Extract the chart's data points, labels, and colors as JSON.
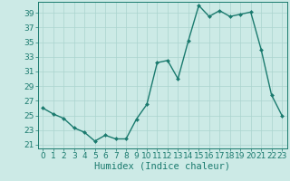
{
  "x": [
    0,
    1,
    2,
    3,
    4,
    5,
    6,
    7,
    8,
    9,
    10,
    11,
    12,
    13,
    14,
    15,
    16,
    17,
    18,
    19,
    20,
    21,
    22,
    23
  ],
  "y": [
    26.0,
    25.2,
    24.6,
    23.3,
    22.7,
    21.5,
    22.3,
    21.8,
    21.8,
    24.5,
    26.5,
    32.2,
    32.5,
    30.0,
    35.2,
    40.0,
    38.5,
    39.3,
    38.5,
    38.8,
    39.1,
    34.0,
    27.8,
    25.0
  ],
  "xlabel": "Humidex (Indice chaleur)",
  "ylabel": "",
  "xlim": [
    -0.5,
    23.5
  ],
  "ylim": [
    20.5,
    40.5
  ],
  "yticks": [
    21,
    23,
    25,
    27,
    29,
    31,
    33,
    35,
    37,
    39
  ],
  "xticks": [
    0,
    1,
    2,
    3,
    4,
    5,
    6,
    7,
    8,
    9,
    10,
    11,
    12,
    13,
    14,
    15,
    16,
    17,
    18,
    19,
    20,
    21,
    22,
    23
  ],
  "line_color": "#1a7a6e",
  "marker_color": "#1a7a6e",
  "bg_color": "#cceae6",
  "grid_color": "#aad4cf",
  "tick_color": "#1a7a6e",
  "label_color": "#1a7a6e",
  "font_size": 6.5,
  "xlabel_fontsize": 7.5,
  "marker": "D",
  "markersize": 2.0,
  "linewidth": 1.0
}
